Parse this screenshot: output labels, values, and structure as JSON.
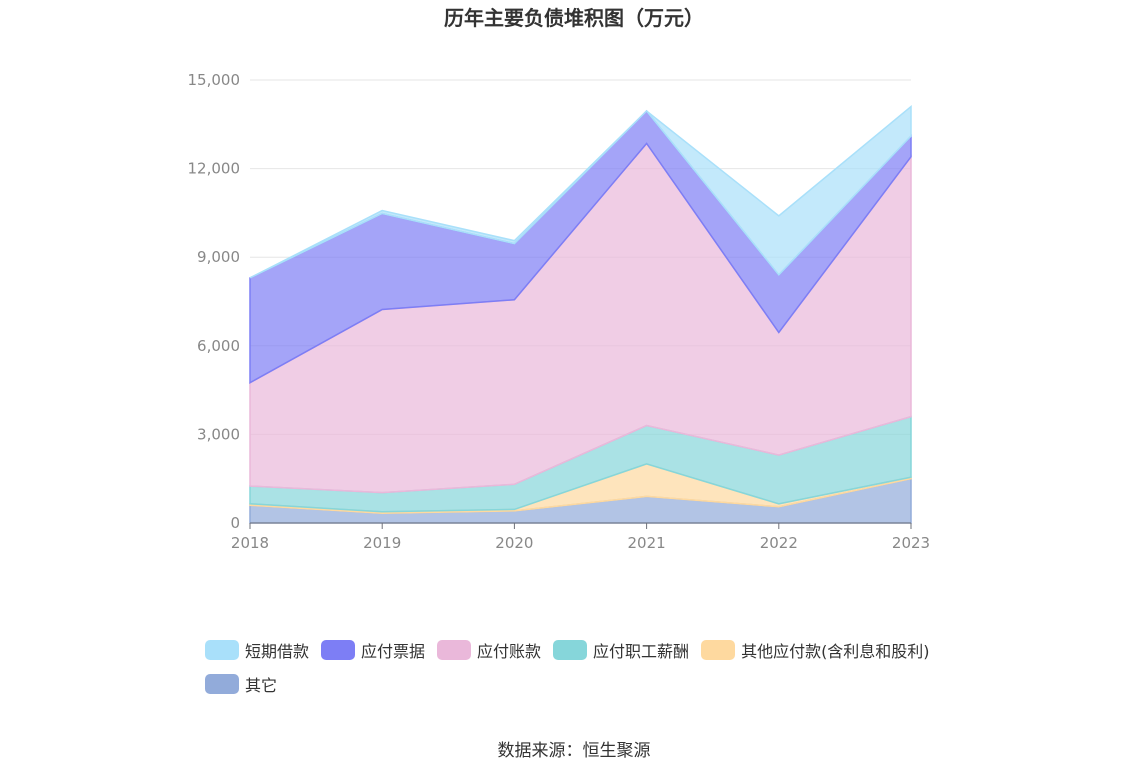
{
  "colors": {
    "短期借款": "#a9e0fa",
    "应付票据": "#7d7ef5",
    "应付账款": "#eab8da",
    "应付职工薪酬": "#86d6da",
    "其他应付款(含利息和股利)": "#fed99f",
    "其它": "#92abda"
  },
  "chart_data": {
    "type": "area",
    "stacked": true,
    "title": "历年主要负债堆积图（万元）",
    "source": "数据来源：恒生聚源",
    "categories": [
      "2018",
      "2019",
      "2020",
      "2021",
      "2022",
      "2023"
    ],
    "ylim": [
      0,
      15000
    ],
    "yticks": [
      0,
      3000,
      6000,
      9000,
      12000,
      15000
    ],
    "ytick_labels": [
      "0",
      "3,000",
      "6,000",
      "9,000",
      "12,000",
      "15,000"
    ],
    "grid": true,
    "legend_position": "bottom",
    "series": [
      {
        "name": "其它",
        "values": [
          600,
          330,
          410,
          900,
          550,
          1500
        ]
      },
      {
        "name": "其他应付款(含利息和股利)",
        "values": [
          50,
          50,
          50,
          1100,
          100,
          50
        ]
      },
      {
        "name": "应付职工薪酬",
        "values": [
          600,
          650,
          850,
          1300,
          1650,
          2050
        ]
      },
      {
        "name": "应付账款",
        "values": [
          3500,
          6200,
          6250,
          9550,
          4150,
          8800
        ]
      },
      {
        "name": "应付票据",
        "values": [
          3550,
          3250,
          1900,
          1100,
          1950,
          700
        ]
      },
      {
        "name": "短期借款",
        "values": [
          0,
          100,
          100,
          0,
          2000,
          1000
        ]
      }
    ],
    "legend_order": [
      "短期借款",
      "应付票据",
      "应付账款",
      "应付职工薪酬",
      "其他应付款(含利息和股利)",
      "其它"
    ]
  }
}
